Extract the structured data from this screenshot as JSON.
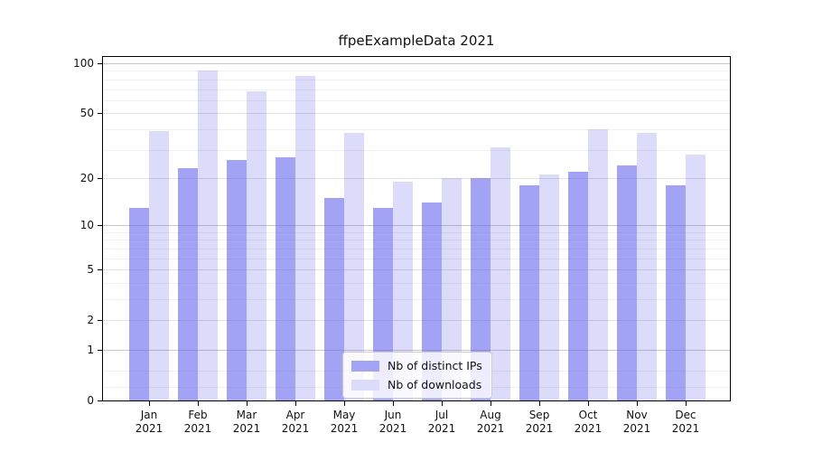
{
  "title": "ffpeExampleData 2021",
  "chart_data": {
    "type": "bar",
    "title": "ffpeExampleData 2021",
    "categories": [
      "Jan",
      "Feb",
      "Mar",
      "Apr",
      "May",
      "Jun",
      "Jul",
      "Aug",
      "Sep",
      "Oct",
      "Nov",
      "Dec"
    ],
    "category_year": "2021",
    "series": [
      {
        "name": "Nb of distinct IPs",
        "values": [
          13,
          23,
          26,
          27,
          15,
          13,
          14,
          20,
          18,
          22,
          24,
          18
        ],
        "color_solid": "#a4a4f4",
        "color_rgba": "rgba(102,102,240,0.6)"
      },
      {
        "name": "Nb of downloads",
        "values": [
          39,
          90,
          68,
          84,
          38,
          19,
          20,
          31,
          21,
          40,
          38,
          28
        ],
        "color_solid": "#dcdcfa",
        "color_rgba": "rgba(80,80,230,0.2)"
      }
    ],
    "y_axis": {
      "scale": "log10(1+value)",
      "major_ticks": [
        100,
        50,
        20,
        10,
        5,
        2,
        1,
        0
      ],
      "decade_gridlines": [
        1,
        10,
        100
      ],
      "submajor_gridlines": [
        2,
        5,
        20,
        50
      ],
      "minor_gridlines": [
        0.2,
        0.5,
        3,
        4,
        6,
        7,
        8,
        9,
        30,
        40,
        60,
        70,
        80,
        90
      ],
      "top_value": 110
    },
    "legend": {
      "items": [
        "Nb of distinct IPs",
        "Nb of downloads"
      ],
      "position": "lower center"
    },
    "grid": true,
    "xlabel": "",
    "ylabel": ""
  }
}
